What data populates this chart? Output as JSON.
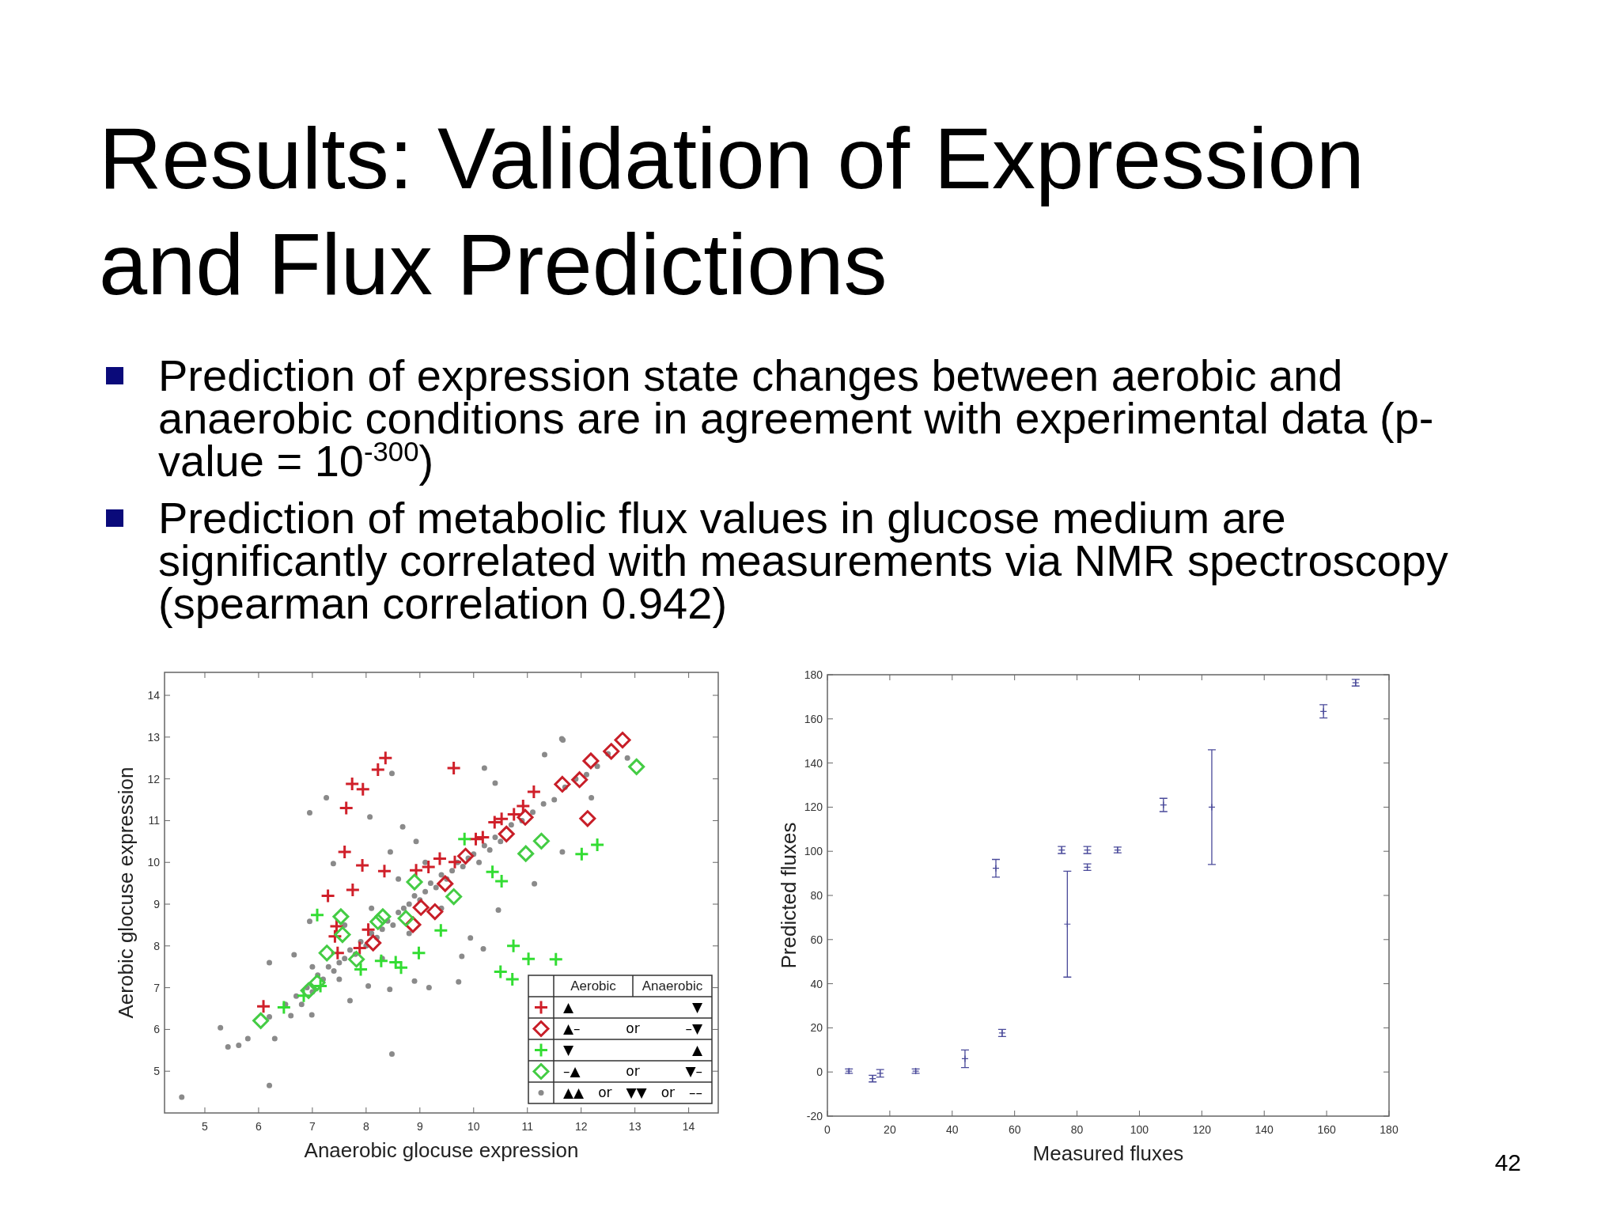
{
  "chart_data": [
    {
      "type": "other",
      "title": "Results: Validation of Expression and Flux Predictions",
      "annotations": [
        "Prediction of expression state changes between aerobic and anaerobic conditions are in agreement with experimental data (p-value = 10$^{-300}$)",
        "Prediction of metabolic flux values in glucose medium are significantly correlated with measurements via NMR spectroscopy (spearman correlation 0.942)",
        "42"
      ]
    },
    {
      "type": "scatter",
      "xlabel": "Anaerobic glocuse expression",
      "ylabel": "Aerobic glocuse expression",
      "xlim": [
        4.25,
        14.55
      ],
      "ylim": [
        4,
        14.55
      ],
      "xticks": [
        5,
        6,
        7,
        8,
        9,
        10,
        11,
        12,
        13,
        14
      ],
      "yticks": [
        5,
        6,
        7,
        8,
        9,
        10,
        11,
        12,
        13,
        14
      ],
      "legend": "bottom right",
      "annotations": [
        "Aerobic",
        "Anaerobic"
      ],
      "series": [
        {
          "name": "▲▲ or ▼▼ or ––",
          "color": "#8a8a8a",
          "marker": "circle",
          "x": [
            4.57,
            6.2,
            8.48,
            5.29,
            5.43,
            5.63,
            5.8,
            6.3,
            6.2,
            6.66,
            6.95,
            7.26,
            8.07,
            8.48,
            8.68,
            8.93,
            8.45,
            7.39,
            10.2,
            10.4,
            11.32,
            11.66,
            11.13,
            10.46,
            9.94,
            9.72,
            9.17,
            8.44,
            7.7,
            6.99,
            6.6,
            10.18,
            9.78,
            8.9,
            6.95,
            8.04,
            11.64,
            12.19,
            12.86,
            11.65,
            6.5,
            6.7,
            6.8,
            6.9,
            7.0,
            7.1,
            7.2,
            7.3,
            7.4,
            7.5,
            7.6,
            7.7,
            7.8,
            7.9,
            8.0,
            8.1,
            8.2,
            8.3,
            8.4,
            8.5,
            8.6,
            8.7,
            8.8,
            8.9,
            9.0,
            9.1,
            9.2,
            9.3,
            9.4,
            9.5,
            9.6,
            9.7,
            9.8,
            9.9,
            10.0,
            10.1,
            10.2,
            10.3,
            10.4,
            10.5,
            10.7,
            10.9,
            11.1,
            11.3,
            11.5,
            11.7,
            11.9,
            12.1,
            12.3,
            12.5,
            7.6,
            8.1,
            8.6,
            9.1,
            8.3,
            8.8,
            9.4,
            7.5,
            7.0,
            6.2
          ],
          "values": [
            4.38,
            4.66,
            5.41,
            6.04,
            5.58,
            5.62,
            5.78,
            5.78,
            7.6,
            7.79,
            11.19,
            11.55,
            11.09,
            12.13,
            10.85,
            10.5,
            10.25,
            9.97,
            12.26,
            11.9,
            12.58,
            12.93,
            9.49,
            8.86,
            8.19,
            7.14,
            7.0,
            6.96,
            6.69,
            6.35,
            6.33,
            7.93,
            7.75,
            7.16,
            8.59,
            7.04,
            12.96,
            11.55,
            12.5,
            10.25,
            6.6,
            6.8,
            6.6,
            7.0,
            6.9,
            7.3,
            7.2,
            7.5,
            7.4,
            7.6,
            7.7,
            7.9,
            7.8,
            8.1,
            8.0,
            8.3,
            8.2,
            8.4,
            8.6,
            8.5,
            8.8,
            8.9,
            9.0,
            9.2,
            9.1,
            9.3,
            9.5,
            9.4,
            9.7,
            9.6,
            9.8,
            10.0,
            9.9,
            10.1,
            10.2,
            10.0,
            10.4,
            10.3,
            10.6,
            10.5,
            10.9,
            11.0,
            11.2,
            11.4,
            11.5,
            11.8,
            12.0,
            12.1,
            12.3,
            12.6,
            8.5,
            8.9,
            9.6,
            10.0,
            7.7,
            8.3,
            8.9,
            7.2,
            7.5,
            6.3
          ]
        },
        {
          "name": "▲ ▼",
          "color": "#d0202a",
          "marker": "cross",
          "x": [
            6.09,
            8.36,
            8.22,
            7.74,
            7.94,
            7.63,
            9.63,
            7.6,
            7.93,
            8.34,
            7.29,
            7.75,
            8.93,
            9.16,
            9.37,
            9.65,
            10.04,
            10.17,
            10.39,
            10.52,
            10.75,
            10.92,
            11.12,
            7.45,
            7.42,
            7.47,
            7.88,
            8.04
          ],
          "values": [
            6.55,
            12.5,
            12.22,
            11.88,
            11.75,
            11.3,
            12.26,
            10.25,
            9.93,
            9.79,
            9.2,
            9.34,
            9.81,
            9.89,
            10.09,
            10.01,
            10.56,
            10.6,
            10.96,
            11.04,
            11.15,
            11.35,
            11.69,
            8.47,
            8.23,
            7.83,
            7.95,
            8.39
          ]
        },
        {
          "name": "▲– or –▼",
          "color": "#c81e28",
          "marker": "diamond",
          "x": [
            8.13,
            8.87,
            9.28,
            9.02,
            9.47,
            9.85,
            10.61,
            10.96,
            11.65,
            11.97,
            12.18,
            12.56,
            12.77,
            12.12
          ],
          "values": [
            8.07,
            8.51,
            8.82,
            8.92,
            9.49,
            10.15,
            10.68,
            11.08,
            11.87,
            11.98,
            12.43,
            12.66,
            12.93,
            11.05
          ]
        },
        {
          "name": "▼ ▲",
          "color": "#33dd33",
          "marker": "cross",
          "x": [
            6.47,
            7.09,
            9.83,
            10.35,
            10.52,
            9.39,
            8.98,
            8.28,
            8.55,
            8.65,
            7.9,
            10.74,
            11.02,
            11.53,
            10.5,
            10.72,
            7.15,
            6.84,
            12.01,
            12.3
          ],
          "values": [
            6.53,
            8.74,
            10.56,
            9.77,
            9.55,
            8.37,
            7.83,
            7.64,
            7.61,
            7.48,
            7.44,
            8.0,
            7.69,
            7.68,
            7.38,
            7.2,
            7.04,
            6.81,
            10.2,
            10.42
          ]
        },
        {
          "name": "–▲ or ▼–",
          "color": "#44cc44",
          "marker": "diamond",
          "x": [
            6.04,
            6.93,
            7.09,
            7.27,
            7.53,
            7.56,
            8.22,
            8.31,
            8.74,
            8.9,
            9.63,
            10.97,
            11.26,
            7.82,
            13.03
          ],
          "values": [
            6.21,
            6.93,
            7.12,
            7.83,
            8.7,
            8.27,
            8.58,
            8.7,
            8.66,
            9.53,
            9.18,
            10.21,
            10.51,
            7.68,
            12.29
          ]
        }
      ]
    },
    {
      "type": "scatter",
      "xlabel": "Measured fluxes",
      "ylabel": "Predicted fluxes",
      "xlim": [
        0,
        180
      ],
      "ylim": [
        -20,
        180
      ],
      "xticks": [
        0,
        20,
        40,
        60,
        80,
        100,
        120,
        140,
        160,
        180
      ],
      "yticks": [
        -20,
        0,
        20,
        40,
        60,
        80,
        100,
        120,
        140,
        160,
        180
      ],
      "marker": "cross",
      "series": [
        {
          "color": "#4a4a9a",
          "x": [
            6.9,
            14.5,
            16.9,
            28.3,
            44.1,
            54,
            56,
            75.1,
            76.9,
            83.3,
            83.3,
            93,
            107.7,
            123.2,
            159,
            169.3
          ],
          "values": [
            0.4,
            -3,
            -0.6,
            0.4,
            6,
            92.3,
            17.7,
            100.6,
            67,
            100.6,
            92.8,
            100.6,
            121,
            120,
            163.4,
            176.4
          ],
          "errors": [
            1,
            1.5,
            1.7,
            1,
            4,
            4,
            1.6,
            1.6,
            24,
            1.6,
            1.5,
            1.3,
            3,
            26,
            3,
            1.5
          ]
        }
      ]
    }
  ]
}
